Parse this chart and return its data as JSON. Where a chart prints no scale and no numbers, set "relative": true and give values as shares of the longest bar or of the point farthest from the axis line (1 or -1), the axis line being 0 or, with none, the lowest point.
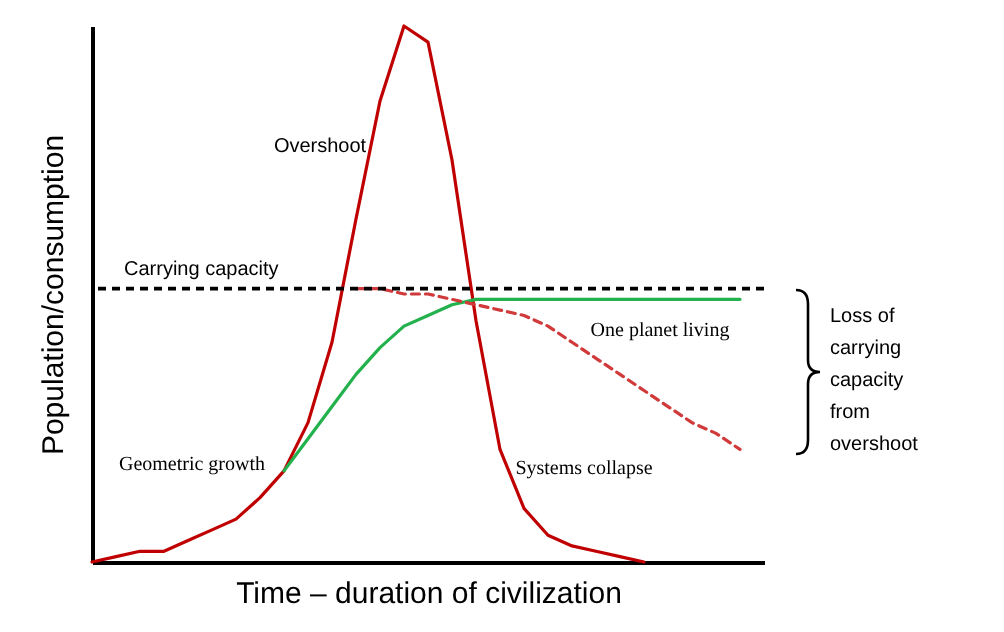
{
  "chart_data": {
    "type": "line",
    "relative": true,
    "xlabel": "Time – duration of civilization",
    "ylabel": "Population/consumption",
    "categories": [
      null,
      null,
      null,
      null,
      null,
      null,
      null,
      null,
      null,
      null,
      null,
      null,
      null,
      null,
      null,
      null,
      null,
      null,
      null,
      null,
      null,
      null,
      null,
      null,
      null,
      null,
      null,
      null,
      null
    ],
    "series": [
      {
        "color": "#c00000",
        "line_style": "solid",
        "values": [
          0,
          0.01,
          0.02,
          0.02,
          0.04,
          0.06,
          0.08,
          0.12,
          0.17,
          0.26,
          0.41,
          0.64,
          0.86,
          1,
          0.97,
          0.75,
          0.45,
          0.21,
          0.1,
          0.05,
          0.03,
          0.02,
          0.01,
          0,
          null,
          null,
          null,
          null,
          null
        ]
      },
      {
        "color": "#22b14c",
        "line_style": "solid",
        "values": [
          null,
          null,
          null,
          null,
          null,
          null,
          null,
          null,
          0.17,
          0.23,
          0.29,
          0.35,
          0.4,
          0.44,
          0.46,
          0.48,
          0.49,
          0.49,
          0.49,
          0.49,
          0.49,
          0.49,
          0.49,
          0.49,
          0.49,
          0.49,
          0.49,
          0.49,
          null
        ]
      },
      {
        "color": "#d03a3a",
        "line_style": "dashed",
        "values": [
          null,
          null,
          null,
          null,
          null,
          null,
          null,
          null,
          null,
          null,
          null,
          0.51,
          0.51,
          0.5,
          0.5,
          0.49,
          0.48,
          0.47,
          0.46,
          0.44,
          0.41,
          0.38,
          0.35,
          0.32,
          0.29,
          0.26,
          0.24,
          0.21,
          null
        ]
      }
    ],
    "ref_lines": [
      {
        "axis": "y",
        "value": 0.51,
        "label": "Carrying capacity",
        "color": "#000000",
        "line_style": "dashed"
      }
    ],
    "annotations": [
      "Overshoot",
      "Geometric growth",
      "Systems collapse",
      "One planet living",
      "Loss of carrying capacity from overshoot"
    ],
    "tick_labels": false,
    "grid": false,
    "marker": "none"
  }
}
